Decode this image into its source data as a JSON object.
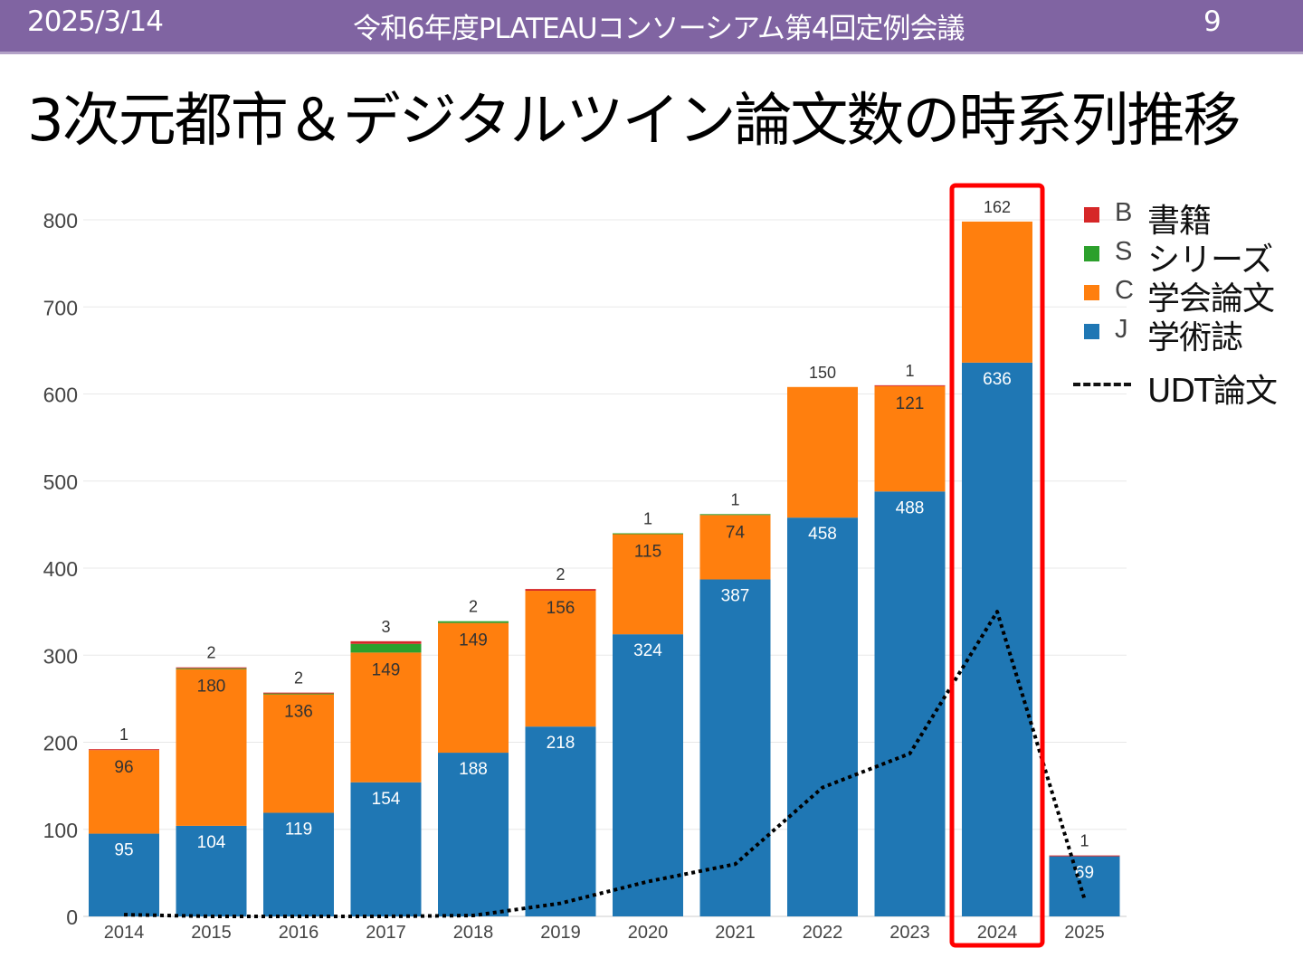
{
  "header": {
    "date": "2025/3/14",
    "meeting": "令和6年度PLATEAUコンソーシアム第4回定例会議",
    "page_number": "9"
  },
  "slide_title": "3次元都市＆デジタルツイン論文数の時系列推移",
  "legend": {
    "items": [
      {
        "code": "B",
        "name": "書籍",
        "color": "#d62728"
      },
      {
        "code": "S",
        "name": "シリーズ",
        "color": "#2ca02c"
      },
      {
        "code": "C",
        "name": "学会論文",
        "color": "#ff7f0e"
      },
      {
        "code": "J",
        "name": "学術誌",
        "color": "#1f77b4"
      }
    ],
    "line_label": "UDT論文"
  },
  "chart_data": {
    "type": "bar",
    "stacked": true,
    "title": "",
    "xlabel": "",
    "ylabel": "",
    "ylim": [
      0,
      800
    ],
    "yticks": [
      0,
      100,
      200,
      300,
      400,
      500,
      600,
      700,
      800
    ],
    "grid": true,
    "legend_position": "right",
    "categories": [
      "2014",
      "2015",
      "2016",
      "2017",
      "2018",
      "2019",
      "2020",
      "2021",
      "2022",
      "2023",
      "2024",
      "2025"
    ],
    "series": [
      {
        "name": "J 学術誌",
        "color": "#1f77b4",
        "values": [
          95,
          104,
          119,
          154,
          188,
          218,
          324,
          387,
          458,
          488,
          636,
          69
        ]
      },
      {
        "name": "C 学会論文",
        "color": "#ff7f0e",
        "values": [
          96,
          180,
          136,
          149,
          149,
          156,
          115,
          74,
          150,
          121,
          162,
          0
        ]
      },
      {
        "name": "S シリーズ",
        "color": "#2ca02c",
        "values": [
          0,
          1,
          1,
          10,
          2,
          0,
          1,
          1,
          0,
          0,
          0,
          0
        ]
      },
      {
        "name": "B 書籍",
        "color": "#d62728",
        "values": [
          1,
          1,
          1,
          3,
          0,
          2,
          0,
          0,
          0,
          1,
          0,
          1
        ]
      }
    ],
    "bar_labels": {
      "J": [
        "95",
        "104",
        "119",
        "154",
        "188",
        "218",
        "324",
        "387",
        "458",
        "488",
        "636",
        "69"
      ],
      "C": [
        "96",
        "180",
        "136",
        "149",
        "149",
        "156",
        "115",
        "74",
        "",
        "121",
        "",
        ""
      ],
      "top": [
        "1",
        "2",
        "2",
        "3",
        "2",
        "2",
        "1",
        "1",
        "150",
        "1",
        "162",
        "1"
      ]
    },
    "line_series": {
      "name": "UDT論文",
      "style": "dotted",
      "color": "#000000",
      "values": [
        2,
        0,
        0,
        0,
        1,
        15,
        40,
        60,
        148,
        187,
        350,
        20
      ]
    },
    "highlight": {
      "category": "2024",
      "color": "#ff0000"
    }
  }
}
